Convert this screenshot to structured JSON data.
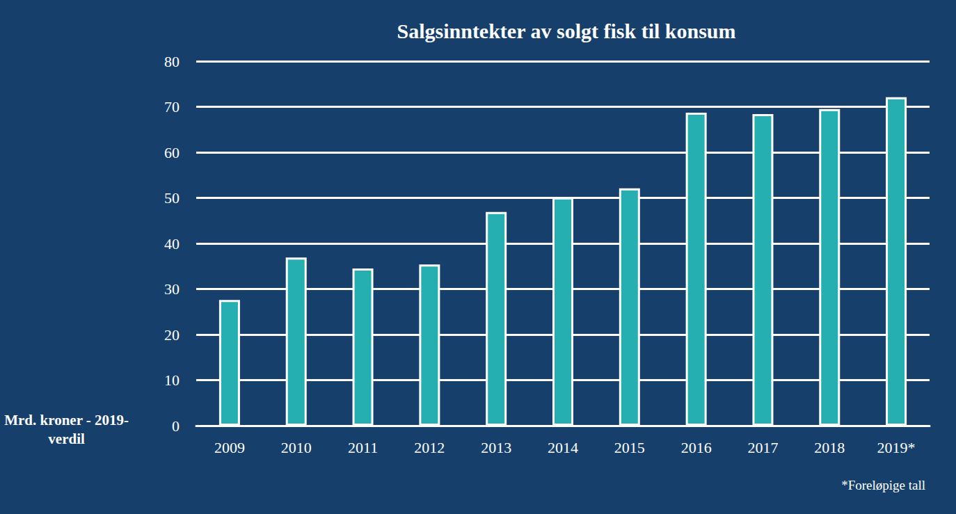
{
  "chart_data": {
    "type": "bar",
    "title": "Salgsinntekter av solgt fisk til konsum",
    "categories": [
      "2009",
      "2010",
      "2011",
      "2012",
      "2013",
      "2014",
      "2015",
      "2016",
      "2017",
      "2018",
      "2019*"
    ],
    "values": [
      27.6,
      36.9,
      34.5,
      35.4,
      46.9,
      50.1,
      52.1,
      68.7,
      68.4,
      69.5,
      72.1
    ],
    "color": "#26afb1",
    "ylim": [
      0,
      80
    ],
    "yticks": [
      0,
      10,
      20,
      30,
      40,
      50,
      60,
      70,
      80
    ],
    "grid": true,
    "y_label": "Mrd. kroner - 2019-\nverdil",
    "footnote": "*Foreløpige tall"
  }
}
